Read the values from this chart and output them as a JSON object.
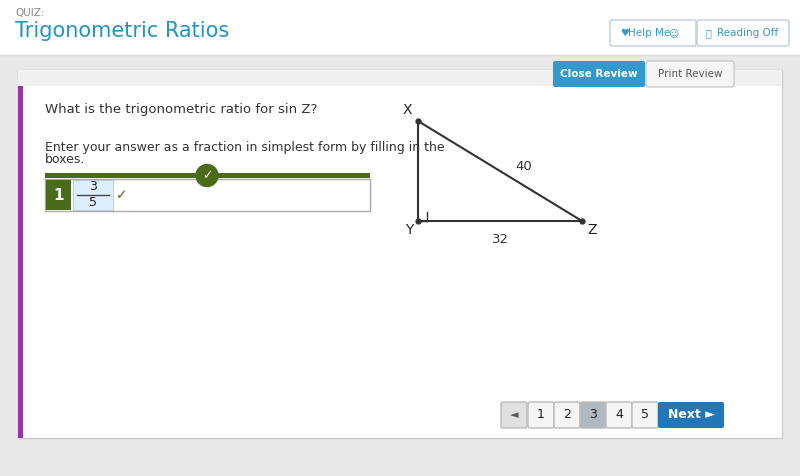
{
  "bg_color": "#e8e8e8",
  "header_bg": "#ffffff",
  "panel_bg": "#ffffff",
  "panel_inner_bg": "#f5f5f5",
  "quiz_label": "QUIZ:",
  "title": "Trigonometric Ratios",
  "title_color": "#2196c4",
  "question_text": "What is the trigonometric ratio for sin Z?",
  "instruction_line1": "Enter your answer as a fraction in simplest form by filling in the",
  "instruction_line2": "boxes.",
  "answer_number": "1",
  "answer_fraction_num": "3",
  "answer_fraction_den": "5",
  "side_label_40": "40",
  "side_label_32": "32",
  "vertex_X": "X",
  "vertex_Y": "Y",
  "vertex_Z": "Z",
  "close_review_color": "#3399cc",
  "print_review_color": "#f0f0f0",
  "next_btn_color": "#2277bb",
  "page_numbers": [
    "1",
    "2",
    "3",
    "4",
    "5"
  ],
  "current_page": 2,
  "answer_bar_color": "#4a6b1a",
  "left_accent_color": "#9933aa",
  "help_btn_color": "#ffffff",
  "text_color": "#333333",
  "gray_btn_color": "#cccccc"
}
